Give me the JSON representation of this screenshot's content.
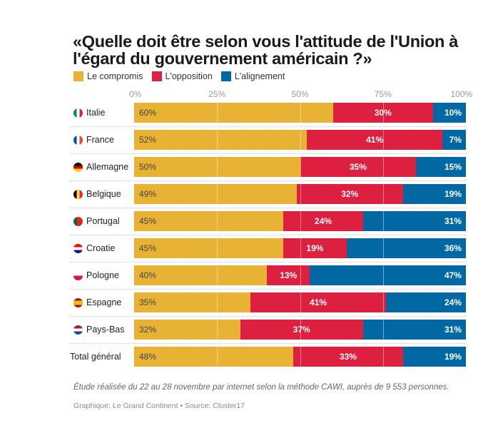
{
  "chart_data": {
    "type": "bar",
    "orientation": "horizontal-stacked-100",
    "title": "«Quelle doit être selon vous l'attitude de l'Union à l'égard du gouvernement américain ?»",
    "xlabel": "",
    "ylabel": "",
    "xlim": [
      0,
      100
    ],
    "xticks": [
      "0%",
      "25%",
      "50%",
      "75%",
      "100%"
    ],
    "legend_position": "top-left",
    "categories": [
      "Italie",
      "France",
      "Allemagne",
      "Belgique",
      "Portugal",
      "Croatie",
      "Pologne",
      "Espagne",
      "Pays-Bas",
      "Total général"
    ],
    "flags": [
      "italy-flag",
      "france-flag",
      "germany-flag",
      "belgium-flag",
      "portugal-flag",
      "croatia-flag",
      "poland-flag",
      "spain-flag",
      "netherlands-flag",
      null
    ],
    "series": [
      {
        "name": "Le compromis",
        "color": "#E8B335",
        "values": [
          60,
          52,
          50,
          49,
          45,
          45,
          40,
          35,
          32,
          48
        ]
      },
      {
        "name": "L'opposition",
        "color": "#DE2040",
        "values": [
          30,
          41,
          35,
          32,
          24,
          19,
          13,
          41,
          37,
          33
        ]
      },
      {
        "name": "L'alignement",
        "color": "#0168A3",
        "values": [
          10,
          7,
          15,
          19,
          31,
          36,
          47,
          24,
          31,
          19
        ]
      }
    ]
  },
  "header": {
    "title_line1": "«Quelle doit être selon vous l'attitude de l'Union à",
    "title_line2": "l'égard du gouvernement américain ?»"
  },
  "legend": [
    {
      "label": "Le compromis",
      "color": "#E8B335"
    },
    {
      "label": "L'opposition",
      "color": "#DE2040"
    },
    {
      "label": "L'alignement",
      "color": "#0168A3"
    }
  ],
  "footer": {
    "note": "Étude réalisée du 22 au 28 novembre par internet selon la méthode CAWI, auprès de 9 553 personnes.",
    "source": "Graphique: Le Grand Continent  • Source: Cluster17"
  }
}
